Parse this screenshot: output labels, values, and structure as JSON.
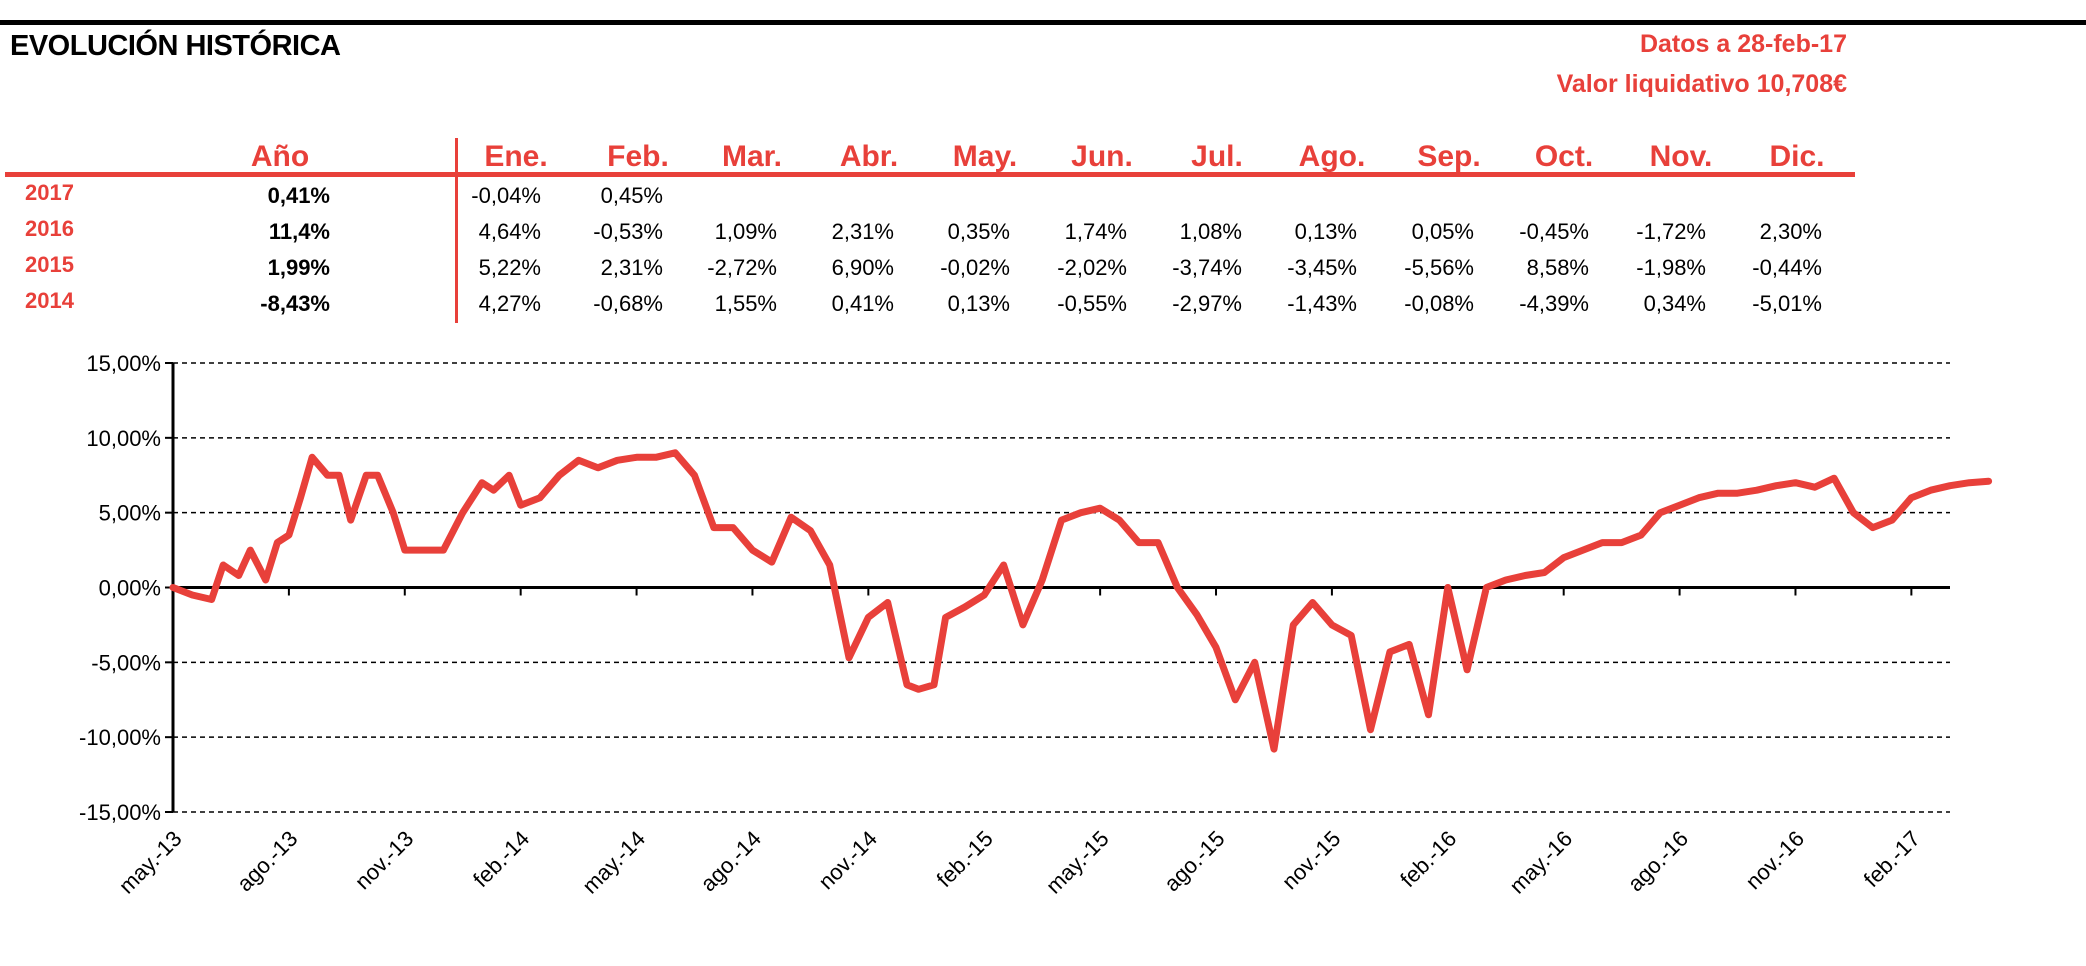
{
  "header": {
    "title": "EVOLUCIÓN HISTÓRICA",
    "date_label": "Datos a 28-feb-17",
    "nav_label": "Valor liquidativo 10,708€"
  },
  "table": {
    "year_header": "Año",
    "months": [
      "Ene.",
      "Feb.",
      "Mar.",
      "Abr.",
      "May.",
      "Jun.",
      "Jul.",
      "Ago.",
      "Sep.",
      "Oct.",
      "Nov.",
      "Dic."
    ],
    "rows": [
      {
        "year": "2017",
        "annual": "0,41%",
        "monthly": [
          "-0,04%",
          "0,45%",
          "",
          "",
          "",
          "",
          "",
          "",
          "",
          "",
          "",
          ""
        ]
      },
      {
        "year": "2016",
        "annual": "11,4%",
        "monthly": [
          "4,64%",
          "-0,53%",
          "1,09%",
          "2,31%",
          "0,35%",
          "1,74%",
          "1,08%",
          "0,13%",
          "0,05%",
          "-0,45%",
          "-1,72%",
          "2,30%"
        ]
      },
      {
        "year": "2015",
        "annual": "1,99%",
        "monthly": [
          "5,22%",
          "2,31%",
          "-2,72%",
          "6,90%",
          "-0,02%",
          "-2,02%",
          "-3,74%",
          "-3,45%",
          "-5,56%",
          "8,58%",
          "-1,98%",
          "-0,44%"
        ]
      },
      {
        "year": "2014",
        "annual": "-8,43%",
        "monthly": [
          "4,27%",
          "-0,68%",
          "1,55%",
          "0,41%",
          "0,13%",
          "-0,55%",
          "-2,97%",
          "-1,43%",
          "-0,08%",
          "-4,39%",
          "0,34%",
          "-5,01%"
        ]
      }
    ]
  },
  "chart_data": {
    "type": "line",
    "title": "",
    "xlabel": "",
    "ylabel": "",
    "ylim": [
      -15,
      15
    ],
    "yticks": [
      15,
      10,
      5,
      0,
      -5,
      -10,
      -15
    ],
    "ytick_labels": [
      "15,00%",
      "10,00%",
      "5,00%",
      "0,00%",
      "-5,00%",
      "-10,00%",
      "-15,00%"
    ],
    "xtick_labels": [
      "may.-13",
      "ago.-13",
      "nov.-13",
      "feb.-14",
      "may.-14",
      "ago.-14",
      "nov.-14",
      "feb.-15",
      "may.-15",
      "ago.-15",
      "nov.-15",
      "feb.-16",
      "may.-16",
      "ago.-16",
      "nov.-16",
      "feb.-17"
    ],
    "grid": "horizontal dashed",
    "line_color": "#e8403a",
    "series": [
      {
        "x": [
          0,
          0.5,
          1,
          1.3,
          1.7,
          2,
          2.4,
          2.7,
          3,
          3.3,
          3.6,
          4,
          4.3,
          4.6,
          5,
          5.3,
          5.7,
          6,
          6.5,
          7,
          7.5,
          8,
          8.3,
          8.7,
          9,
          9.5,
          10,
          10.5,
          11,
          11.5,
          12,
          12.5,
          13,
          13.5,
          14,
          14.5,
          15,
          15.5,
          16,
          16.5,
          17,
          17.5,
          18,
          18.5,
          19,
          19.3,
          19.7,
          20,
          20.5,
          21,
          21.5,
          22,
          22.5,
          23,
          23.5,
          24,
          24.5,
          25,
          25.5,
          26,
          26.5,
          27,
          27.5,
          28,
          28.5,
          29,
          29.5,
          30,
          30.5,
          31,
          31.5,
          32,
          32.5,
          33,
          33.5,
          34,
          34.5,
          35,
          35.5,
          36,
          36.5,
          37,
          37.5,
          38,
          38.5,
          39,
          39.5,
          40,
          40.5,
          41,
          41.5,
          42,
          42.5,
          43,
          43.5,
          44,
          44.5,
          45,
          45.5,
          46,
          46.5,
          47
        ],
        "y": [
          0,
          -0.5,
          -0.8,
          1.5,
          0.8,
          2.5,
          0.5,
          3,
          3.5,
          6,
          8.7,
          7.5,
          7.5,
          4.5,
          7.5,
          7.5,
          5,
          2.5,
          2.5,
          2.5,
          5,
          7,
          6.5,
          7.5,
          5.5,
          6,
          7.5,
          8.5,
          8,
          8.5,
          8.7,
          8.7,
          9,
          7.5,
          4,
          4,
          2.5,
          1.7,
          4.7,
          3.8,
          1.5,
          -4.7,
          -2,
          -1,
          -6.5,
          -6.8,
          -6.5,
          -2,
          -1.3,
          -0.5,
          1.5,
          -2.5,
          0.5,
          4.5,
          5,
          5.3,
          4.5,
          3,
          3,
          0,
          -1.8,
          -4,
          -7.5,
          -5,
          -10.8,
          -2.5,
          -1,
          -2.5,
          -3.2,
          -9.5,
          -4.3,
          -3.8,
          -8.5,
          0,
          -5.5,
          0,
          0.5,
          0.8,
          1,
          2,
          2.5,
          3,
          3,
          3.5,
          5,
          5.5,
          6,
          6.3,
          6.3,
          6.5,
          6.8,
          7,
          6.7,
          7.3,
          5,
          4,
          4.5,
          6,
          6.5,
          6.8,
          7,
          7.1
        ],
        "name": ""
      }
    ]
  }
}
